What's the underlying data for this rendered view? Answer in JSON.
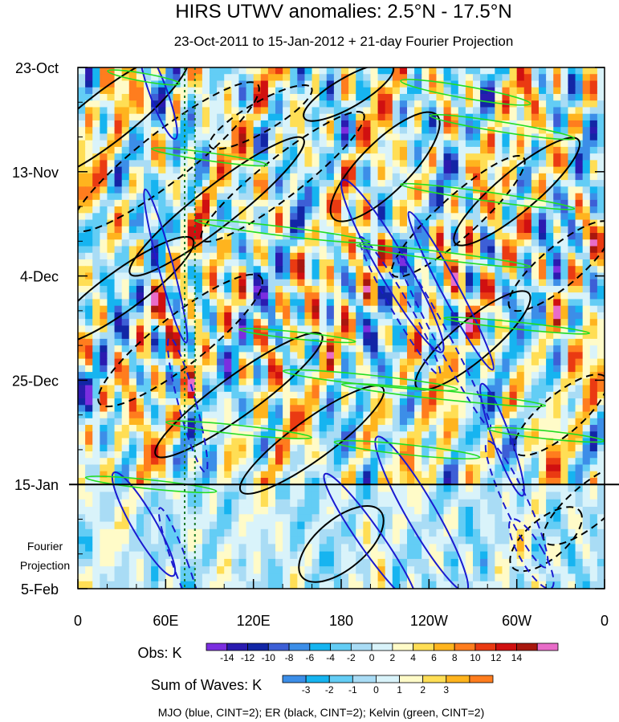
{
  "chart_data": {
    "type": "heatmap",
    "title": "HIRS UTWV anomalies: 2.5°N - 17.5°N",
    "subtitle": "23-Oct-2011 to 15-Jan-2012 + 21-day Fourier Projection",
    "xlabel": "",
    "ylabel": "",
    "x_ticks": [
      "0",
      "60E",
      "120E",
      "180",
      "120W",
      "60W",
      "0"
    ],
    "x_tick_values_deg_east": [
      0,
      60,
      120,
      180,
      240,
      300,
      360
    ],
    "xlim_deg_east": [
      0,
      360
    ],
    "y_ticks": [
      "23-Oct",
      "13-Nov",
      "4-Dec",
      "25-Dec",
      "15-Jan",
      "5-Feb"
    ],
    "y_tick_days_from_start": [
      0,
      21,
      42,
      63,
      84,
      105
    ],
    "ylim_days_from_start": [
      0,
      105
    ],
    "observation_end_day": 84,
    "forecast_label_line1": "Fourier",
    "forecast_label_line2": "Projection",
    "reference_lines_deg_east": [
      73,
      80
    ],
    "obs_colorbar": {
      "label": "Obs: K",
      "tick_labels": [
        "-14",
        "-12",
        "-10",
        "-8",
        "-6",
        "-4",
        "-2",
        "0",
        "2",
        "4",
        "6",
        "8",
        "10",
        "12",
        "14"
      ],
      "colors": [
        "#7b2ee0",
        "#2a1bb0",
        "#1226a6",
        "#3d5fd6",
        "#3c8ee8",
        "#16b4f0",
        "#63cdf5",
        "#a9dcf5",
        "#d9f3fa",
        "#fffbc8",
        "#ffde55",
        "#ffb41e",
        "#ff7d1e",
        "#ea3a12",
        "#d01010",
        "#a8170e",
        "#e86cc8"
      ]
    },
    "waves_colorbar": {
      "label": "Sum of Waves: K",
      "tick_labels": [
        "-3",
        "-2",
        "-1",
        "0",
        "1",
        "2",
        "3"
      ],
      "colors": [
        "#3c8ee8",
        "#16b4f0",
        "#63cdf5",
        "#a9dcf5",
        "#d9f3fa",
        "#fffbc8",
        "#ffde55",
        "#ffb41e",
        "#ff7d1e"
      ]
    },
    "footnote": "MJO (blue, CINT=2); ER (black, CINT=2); Kelvin (green, CINT=2)",
    "series": [
      {
        "name": "MJO",
        "color": "#1a1ad0",
        "contour_interval": 2
      },
      {
        "name": "ER",
        "color": "#000000",
        "contour_interval": 2
      },
      {
        "name": "Kelvin",
        "color": "#22dd22",
        "contour_interval": 2
      }
    ]
  }
}
